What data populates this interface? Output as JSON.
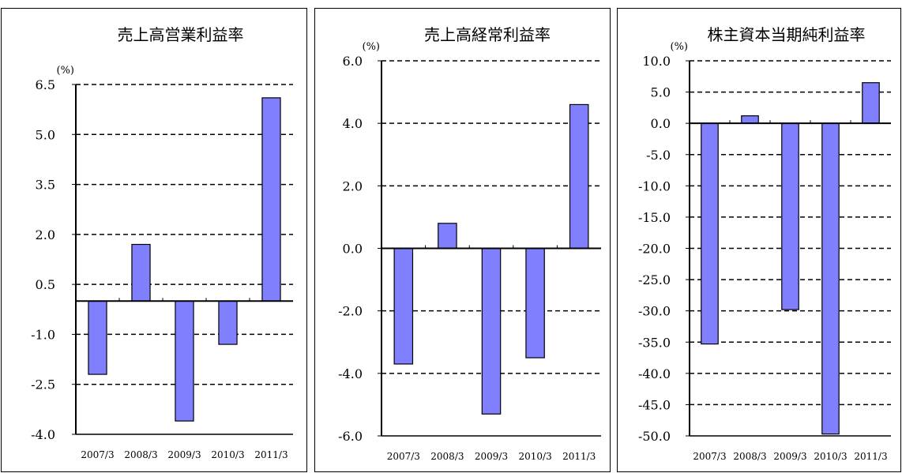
{
  "chart_data": [
    {
      "type": "bar",
      "title": "売上高営業利益率",
      "unit_label": "(%)",
      "categories": [
        "2007/3",
        "2008/3",
        "2009/3",
        "2010/3",
        "2011/3"
      ],
      "values": [
        -2.2,
        1.7,
        -3.6,
        -1.3,
        6.1
      ],
      "yticks": [
        "6.5",
        "5.0",
        "3.5",
        "2.0",
        "0.5",
        "-1.0",
        "-2.5",
        "-4.0"
      ],
      "ylim": [
        -4.0,
        6.5
      ],
      "grid": true,
      "bar_color": "#8080ff"
    },
    {
      "type": "bar",
      "title": "売上高経常利益率",
      "unit_label": "(%)",
      "categories": [
        "2007/3",
        "2008/3",
        "2009/3",
        "2010/3",
        "2011/3"
      ],
      "values": [
        -3.7,
        0.8,
        -5.3,
        -3.5,
        4.6
      ],
      "yticks": [
        "6.0",
        "4.0",
        "2.0",
        "0.0",
        "-2.0",
        "-4.0",
        "-6.0"
      ],
      "ylim": [
        -6.0,
        6.0
      ],
      "grid": true,
      "bar_color": "#8080ff"
    },
    {
      "type": "bar",
      "title": "株主資本当期純利益率",
      "unit_label": "(%)",
      "categories": [
        "2007/3",
        "2008/3",
        "2009/3",
        "2010/3",
        "2011/3"
      ],
      "values": [
        -35.3,
        1.2,
        -29.8,
        -49.7,
        6.5
      ],
      "yticks": [
        "10.0",
        "5.0",
        "0.0",
        "-5.0",
        "-10.0",
        "-15.0",
        "-20.0",
        "-25.0",
        "-30.0",
        "-35.0",
        "-40.0",
        "-45.0",
        "-50.0"
      ],
      "ylim": [
        -50.0,
        10.0
      ],
      "grid": true,
      "bar_color": "#8080ff"
    }
  ]
}
